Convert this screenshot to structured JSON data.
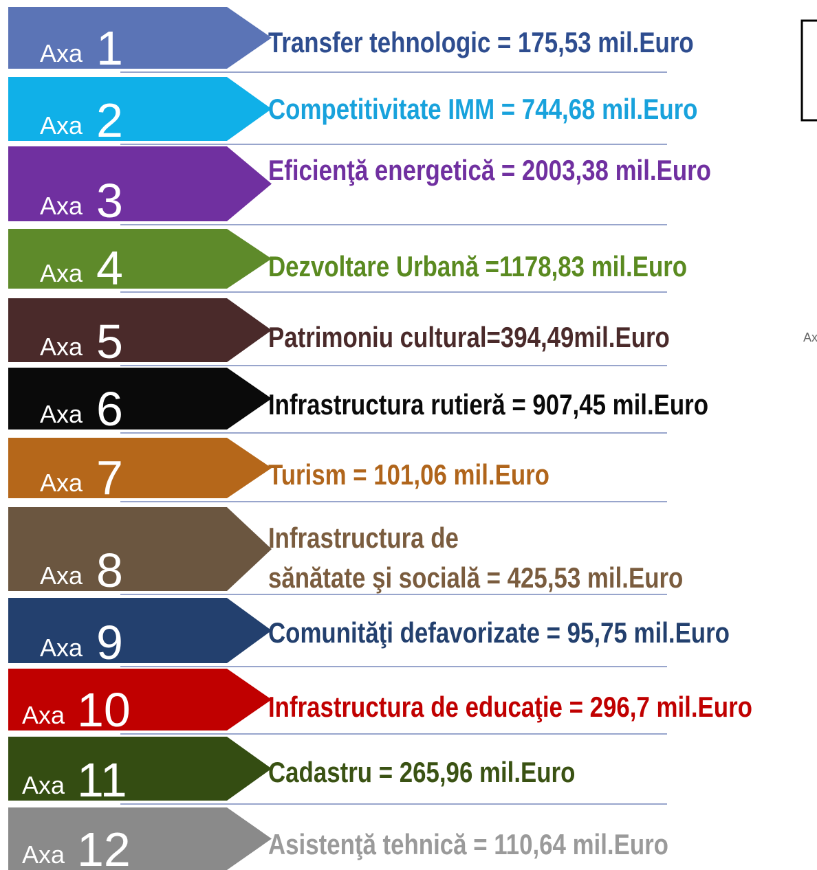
{
  "items": [
    {
      "prefix": "Axa",
      "number": "1",
      "lines": [
        "Transfer tehnologic = 175,53 mil.Euro"
      ],
      "color": "#5b74b6",
      "text_color": "#2e4d8f"
    },
    {
      "prefix": "Axa",
      "number": "2",
      "lines": [
        "Competitivitate IMM = 744,68 mil.Euro"
      ],
      "color": "#10b0e8",
      "text_color": "#18a2dc"
    },
    {
      "prefix": "Axa",
      "number": "3",
      "lines": [
        "Eficienţă energetică = 2003,38 mil.Euro"
      ],
      "color": "#7030a0",
      "text_color": "#7030a0"
    },
    {
      "prefix": "Axa",
      "number": "4",
      "lines": [
        "Dezvoltare Urbană =1178,83 mil.Euro"
      ],
      "color": "#5e8a2a",
      "text_color": "#5a8a20"
    },
    {
      "prefix": "Axa",
      "number": "5",
      "lines": [
        "Patrimoniu cultural=394,49mil.Euro"
      ],
      "color": "#4a2a2a",
      "text_color": "#4a2a2a"
    },
    {
      "prefix": "Axa",
      "number": "6",
      "lines": [
        "Infrastructura rutieră = 907,45 mil.Euro"
      ],
      "color": "#0a0a0a",
      "text_color": "#0a0a0a"
    },
    {
      "prefix": "Axa",
      "number": "7",
      "lines": [
        "Turism = 101,06 mil.Euro"
      ],
      "color": "#b5671a",
      "text_color": "#b0651b"
    },
    {
      "prefix": "Axa",
      "number": "8",
      "lines": [
        "Infrastructura de",
        "sănătate şi socială = 425,53 mil.Euro"
      ],
      "color": "#6b5640",
      "text_color": "#7a5c3e"
    },
    {
      "prefix": "Axa",
      "number": "9",
      "lines": [
        "Comunităţi defavorizate = 95,75 mil.Euro"
      ],
      "color": "#23406e",
      "text_color": "#23406e"
    },
    {
      "prefix": "Axa",
      "number": "10",
      "lines": [
        "Infrastructura de educaţie = 296,7 mil.Euro"
      ],
      "color": "#c00000",
      "text_color": "#c00000"
    },
    {
      "prefix": "Axa",
      "number": "11",
      "lines": [
        "Cadastru = 265,96 mil.Euro"
      ],
      "color": "#344d12",
      "text_color": "#3a5213"
    },
    {
      "prefix": "Axa",
      "number": "12",
      "lines": [
        "Asistenţă tehnică = 110,64 mil.Euro"
      ],
      "color": "#8a8a8a",
      "text_color": "#9a9a9a"
    }
  ],
  "fragment": "Ax"
}
